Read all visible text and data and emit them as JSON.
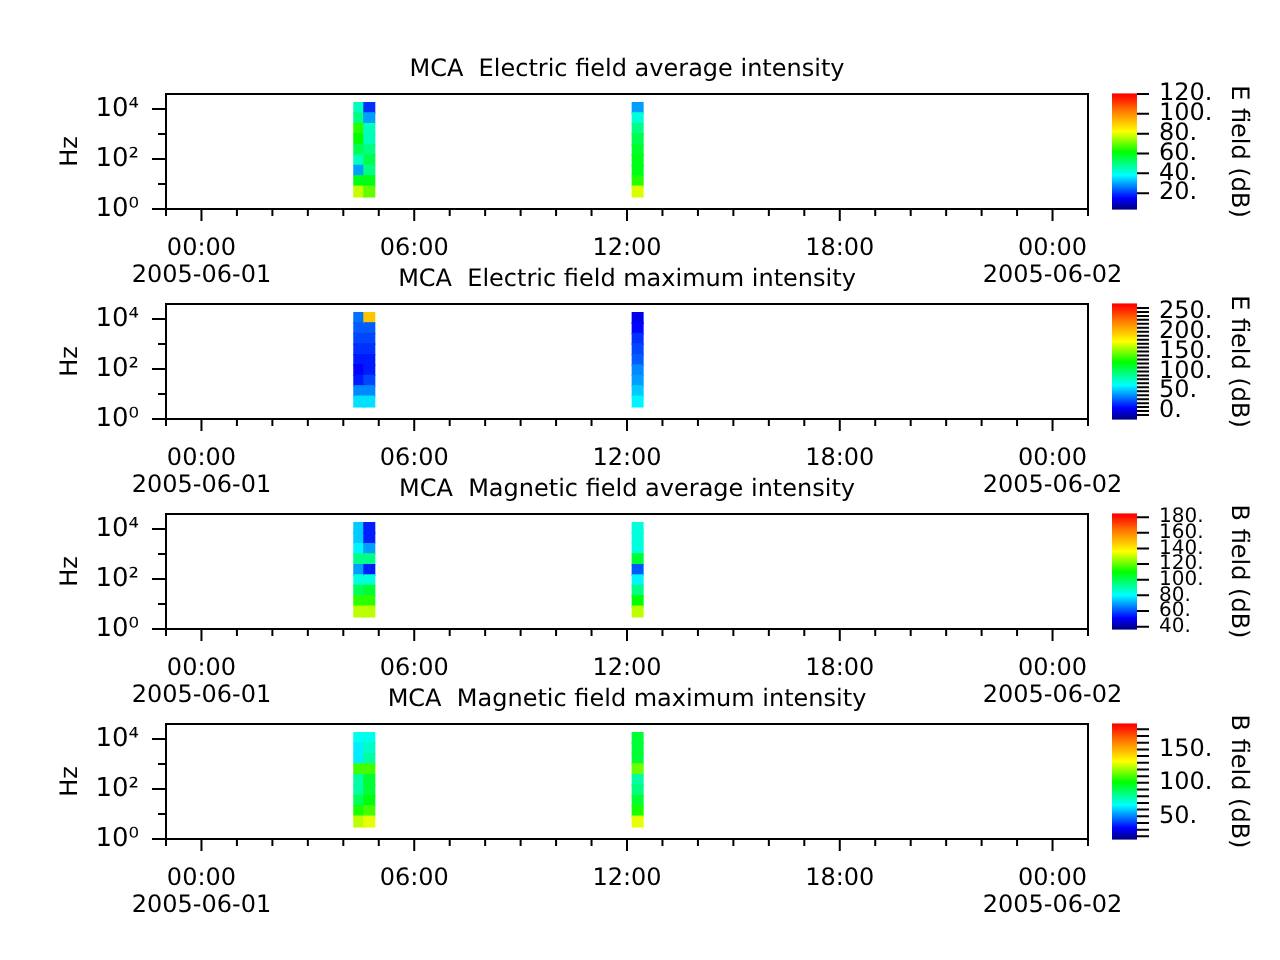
{
  "chart_data": [
    {
      "type": "scatter",
      "title": "MCA  Electric field average intensity",
      "ylabel": "Hz",
      "clabel": "E field (dB)",
      "x": [
        "2005-06-01T04:27",
        "2005-06-01T04:27",
        "2005-06-01T04:27",
        "2005-06-01T04:27",
        "2005-06-01T04:27",
        "2005-06-01T04:27",
        "2005-06-01T04:27",
        "2005-06-01T04:27",
        "2005-06-01T04:27",
        "2005-06-01T04:44",
        "2005-06-01T04:44",
        "2005-06-01T04:44",
        "2005-06-01T04:44",
        "2005-06-01T04:44",
        "2005-06-01T04:44",
        "2005-06-01T04:44",
        "2005-06-01T04:44",
        "2005-06-01T04:44",
        "2005-06-01T12:18",
        "2005-06-01T12:18",
        "2005-06-01T12:18",
        "2005-06-01T12:18",
        "2005-06-01T12:18",
        "2005-06-01T12:18",
        "2005-06-01T12:18",
        "2005-06-01T12:18",
        "2005-06-01T12:18"
      ],
      "values": [
        11000,
        4300,
        1600,
        620,
        230,
        89,
        34,
        13,
        5,
        11000,
        4300,
        1600,
        620,
        230,
        89,
        34,
        13,
        5,
        11000,
        4300,
        1600,
        620,
        230,
        89,
        34,
        13,
        5
      ],
      "cvalues": [
        45,
        50,
        65,
        62,
        55,
        45,
        30,
        60,
        78,
        20,
        30,
        45,
        45,
        50,
        55,
        50,
        60,
        70,
        30,
        42,
        50,
        55,
        58,
        60,
        60,
        65,
        80
      ],
      "marker": "square",
      "log": "y",
      "xlim": [
        "2005-05-31T23:00",
        "2005-06-02T01:00"
      ],
      "xticks": [
        {
          "value": "2005-05-31T23:00",
          "label": null
        },
        {
          "value": "2005-06-01T00:00",
          "label": "00:00\n2005-06-01"
        },
        {
          "value": "2005-06-01T01:00",
          "label": null
        },
        {
          "value": "2005-06-01T02:00",
          "label": null
        },
        {
          "value": "2005-06-01T03:00",
          "label": null
        },
        {
          "value": "2005-06-01T04:00",
          "label": null
        },
        {
          "value": "2005-06-01T05:00",
          "label": null
        },
        {
          "value": "2005-06-01T06:00",
          "label": "06:00"
        },
        {
          "value": "2005-06-01T07:00",
          "label": null
        },
        {
          "value": "2005-06-01T08:00",
          "label": null
        },
        {
          "value": "2005-06-01T09:00",
          "label": null
        },
        {
          "value": "2005-06-01T10:00",
          "label": null
        },
        {
          "value": "2005-06-01T11:00",
          "label": null
        },
        {
          "value": "2005-06-01T12:00",
          "label": "12:00"
        },
        {
          "value": "2005-06-01T13:00",
          "label": null
        },
        {
          "value": "2005-06-01T14:00",
          "label": null
        },
        {
          "value": "2005-06-01T15:00",
          "label": null
        },
        {
          "value": "2005-06-01T16:00",
          "label": null
        },
        {
          "value": "2005-06-01T17:00",
          "label": null
        },
        {
          "value": "2005-06-01T18:00",
          "label": "18:00"
        },
        {
          "value": "2005-06-01T19:00",
          "label": null
        },
        {
          "value": "2005-06-01T20:00",
          "label": null
        },
        {
          "value": "2005-06-01T21:00",
          "label": null
        },
        {
          "value": "2005-06-01T22:00",
          "label": null
        },
        {
          "value": "2005-06-01T23:00",
          "label": null
        },
        {
          "value": "2005-06-02T00:00",
          "label": "00:00\n2005-06-02"
        },
        {
          "value": "2005-06-02T01:00",
          "label": null
        }
      ],
      "ylim": [
        1,
        40000
      ],
      "yticks": [
        {
          "value": 1,
          "label": "10⁰"
        },
        {
          "value": 10,
          "label": null
        },
        {
          "value": 100,
          "label": "10²"
        },
        {
          "value": 1000,
          "label": null
        },
        {
          "value": 10000,
          "label": "10⁴"
        }
      ],
      "clim": [
        4,
        120
      ],
      "cticks": [
        {
          "value": 20,
          "label": "20."
        },
        {
          "value": 40,
          "label": "40."
        },
        {
          "value": 60,
          "label": "60."
        },
        {
          "value": 80,
          "label": "80."
        },
        {
          "value": 100,
          "label": "100."
        },
        {
          "value": 120,
          "label": "120."
        }
      ]
    },
    {
      "type": "scatter",
      "title": "MCA  Electric field maximum intensity",
      "ylabel": "Hz",
      "clabel": "E field (dB)",
      "x": [
        "2005-06-01T04:27",
        "2005-06-01T04:27",
        "2005-06-01T04:27",
        "2005-06-01T04:27",
        "2005-06-01T04:27",
        "2005-06-01T04:27",
        "2005-06-01T04:27",
        "2005-06-01T04:27",
        "2005-06-01T04:27",
        "2005-06-01T04:44",
        "2005-06-01T04:44",
        "2005-06-01T04:44",
        "2005-06-01T04:44",
        "2005-06-01T04:44",
        "2005-06-01T04:44",
        "2005-06-01T04:44",
        "2005-06-01T04:44",
        "2005-06-01T04:44",
        "2005-06-01T12:18",
        "2005-06-01T12:18",
        "2005-06-01T12:18",
        "2005-06-01T12:18",
        "2005-06-01T12:18",
        "2005-06-01T12:18",
        "2005-06-01T12:18",
        "2005-06-01T12:18",
        "2005-06-01T12:18"
      ],
      "values": [
        11000,
        4300,
        1600,
        620,
        230,
        89,
        34,
        13,
        5,
        11000,
        4300,
        1600,
        620,
        230,
        89,
        34,
        13,
        5,
        11000,
        4300,
        1600,
        620,
        230,
        89,
        34,
        13,
        5
      ],
      "cvalues": [
        35,
        30,
        25,
        20,
        15,
        10,
        15,
        40,
        60,
        200,
        30,
        25,
        20,
        15,
        15,
        25,
        40,
        60,
        5,
        10,
        20,
        25,
        30,
        40,
        45,
        55,
        65
      ],
      "marker": "square",
      "log": "y",
      "xlim": [
        "2005-05-31T23:00",
        "2005-06-02T01:00"
      ],
      "xticks": [
        {
          "value": "2005-05-31T23:00",
          "label": null
        },
        {
          "value": "2005-06-01T00:00",
          "label": "00:00\n2005-06-01"
        },
        {
          "value": "2005-06-01T01:00",
          "label": null
        },
        {
          "value": "2005-06-01T02:00",
          "label": null
        },
        {
          "value": "2005-06-01T03:00",
          "label": null
        },
        {
          "value": "2005-06-01T04:00",
          "label": null
        },
        {
          "value": "2005-06-01T05:00",
          "label": null
        },
        {
          "value": "2005-06-01T06:00",
          "label": "06:00"
        },
        {
          "value": "2005-06-01T07:00",
          "label": null
        },
        {
          "value": "2005-06-01T08:00",
          "label": null
        },
        {
          "value": "2005-06-01T09:00",
          "label": null
        },
        {
          "value": "2005-06-01T10:00",
          "label": null
        },
        {
          "value": "2005-06-01T11:00",
          "label": null
        },
        {
          "value": "2005-06-01T12:00",
          "label": "12:00"
        },
        {
          "value": "2005-06-01T13:00",
          "label": null
        },
        {
          "value": "2005-06-01T14:00",
          "label": null
        },
        {
          "value": "2005-06-01T15:00",
          "label": null
        },
        {
          "value": "2005-06-01T16:00",
          "label": null
        },
        {
          "value": "2005-06-01T17:00",
          "label": null
        },
        {
          "value": "2005-06-01T18:00",
          "label": "18:00"
        },
        {
          "value": "2005-06-01T19:00",
          "label": null
        },
        {
          "value": "2005-06-01T20:00",
          "label": null
        },
        {
          "value": "2005-06-01T21:00",
          "label": null
        },
        {
          "value": "2005-06-01T22:00",
          "label": null
        },
        {
          "value": "2005-06-01T23:00",
          "label": null
        },
        {
          "value": "2005-06-02T00:00",
          "label": "00:00\n2005-06-02"
        },
        {
          "value": "2005-06-02T01:00",
          "label": null
        }
      ],
      "ylim": [
        1,
        40000
      ],
      "yticks": [
        {
          "value": 1,
          "label": "10⁰"
        },
        {
          "value": 10,
          "label": null
        },
        {
          "value": 100,
          "label": "10²"
        },
        {
          "value": 1000,
          "label": null
        },
        {
          "value": 10000,
          "label": "10⁴"
        }
      ],
      "clim": [
        -20,
        270
      ],
      "cticks": [
        {
          "value": -10,
          "label": null
        },
        {
          "value": 0,
          "label": "0."
        },
        {
          "value": 10,
          "label": null
        },
        {
          "value": 20,
          "label": null
        },
        {
          "value": 30,
          "label": null
        },
        {
          "value": 40,
          "label": null
        },
        {
          "value": 50,
          "label": "50."
        },
        {
          "value": 60,
          "label": null
        },
        {
          "value": 70,
          "label": null
        },
        {
          "value": 80,
          "label": null
        },
        {
          "value": 90,
          "label": null
        },
        {
          "value": 100,
          "label": "100."
        },
        {
          "value": 110,
          "label": null
        },
        {
          "value": 120,
          "label": null
        },
        {
          "value": 130,
          "label": null
        },
        {
          "value": 140,
          "label": null
        },
        {
          "value": 150,
          "label": "150."
        },
        {
          "value": 160,
          "label": null
        },
        {
          "value": 170,
          "label": null
        },
        {
          "value": 180,
          "label": null
        },
        {
          "value": 190,
          "label": null
        },
        {
          "value": 200,
          "label": "200."
        },
        {
          "value": 210,
          "label": null
        },
        {
          "value": 220,
          "label": null
        },
        {
          "value": 230,
          "label": null
        },
        {
          "value": 240,
          "label": null
        },
        {
          "value": 250,
          "label": "250."
        },
        {
          "value": 260,
          "label": null
        }
      ]
    },
    {
      "type": "scatter",
      "title": "MCA  Magnetic field average intensity",
      "ylabel": "Hz",
      "clabel": "B field (dB)",
      "x": [
        "2005-06-01T04:27",
        "2005-06-01T04:27",
        "2005-06-01T04:27",
        "2005-06-01T04:27",
        "2005-06-01T04:27",
        "2005-06-01T04:27",
        "2005-06-01T04:27",
        "2005-06-01T04:27",
        "2005-06-01T04:27",
        "2005-06-01T04:44",
        "2005-06-01T04:44",
        "2005-06-01T04:44",
        "2005-06-01T04:44",
        "2005-06-01T04:44",
        "2005-06-01T04:44",
        "2005-06-01T04:44",
        "2005-06-01T04:44",
        "2005-06-01T04:44",
        "2005-06-01T12:18",
        "2005-06-01T12:18",
        "2005-06-01T12:18",
        "2005-06-01T12:18",
        "2005-06-01T12:18",
        "2005-06-01T12:18",
        "2005-06-01T12:18",
        "2005-06-01T12:18",
        "2005-06-01T12:18"
      ],
      "values": [
        11000,
        4300,
        1600,
        620,
        230,
        89,
        34,
        13,
        5,
        11000,
        4300,
        1600,
        620,
        230,
        89,
        34,
        13,
        5,
        11000,
        4300,
        1600,
        620,
        230,
        89,
        34,
        13,
        5
      ],
      "cvalues": [
        75,
        75,
        80,
        95,
        70,
        85,
        100,
        115,
        130,
        55,
        55,
        70,
        95,
        55,
        85,
        105,
        115,
        130,
        85,
        85,
        85,
        105,
        62,
        80,
        95,
        110,
        130
      ],
      "marker": "square",
      "log": "y",
      "xlim": [
        "2005-05-31T23:00",
        "2005-06-02T01:00"
      ],
      "xticks": [
        {
          "value": "2005-05-31T23:00",
          "label": null
        },
        {
          "value": "2005-06-01T00:00",
          "label": "00:00\n2005-06-01"
        },
        {
          "value": "2005-06-01T01:00",
          "label": null
        },
        {
          "value": "2005-06-01T02:00",
          "label": null
        },
        {
          "value": "2005-06-01T03:00",
          "label": null
        },
        {
          "value": "2005-06-01T04:00",
          "label": null
        },
        {
          "value": "2005-06-01T05:00",
          "label": null
        },
        {
          "value": "2005-06-01T06:00",
          "label": "06:00"
        },
        {
          "value": "2005-06-01T07:00",
          "label": null
        },
        {
          "value": "2005-06-01T08:00",
          "label": null
        },
        {
          "value": "2005-06-01T09:00",
          "label": null
        },
        {
          "value": "2005-06-01T10:00",
          "label": null
        },
        {
          "value": "2005-06-01T11:00",
          "label": null
        },
        {
          "value": "2005-06-01T12:00",
          "label": "12:00"
        },
        {
          "value": "2005-06-01T13:00",
          "label": null
        },
        {
          "value": "2005-06-01T14:00",
          "label": null
        },
        {
          "value": "2005-06-01T15:00",
          "label": null
        },
        {
          "value": "2005-06-01T16:00",
          "label": null
        },
        {
          "value": "2005-06-01T17:00",
          "label": null
        },
        {
          "value": "2005-06-01T18:00",
          "label": "18:00"
        },
        {
          "value": "2005-06-01T19:00",
          "label": null
        },
        {
          "value": "2005-06-01T20:00",
          "label": null
        },
        {
          "value": "2005-06-01T21:00",
          "label": null
        },
        {
          "value": "2005-06-01T22:00",
          "label": null
        },
        {
          "value": "2005-06-01T23:00",
          "label": null
        },
        {
          "value": "2005-06-02T00:00",
          "label": "00:00\n2005-06-02"
        },
        {
          "value": "2005-06-02T01:00",
          "label": null
        }
      ],
      "ylim": [
        1,
        40000
      ],
      "yticks": [
        {
          "value": 1,
          "label": "10⁰"
        },
        {
          "value": 10,
          "label": null
        },
        {
          "value": 100,
          "label": "10²"
        },
        {
          "value": 1000,
          "label": null
        },
        {
          "value": 10000,
          "label": "10⁴"
        }
      ],
      "clim": [
        37,
        184
      ],
      "cticks": [
        {
          "value": 40,
          "label": "40."
        },
        {
          "value": 60,
          "label": "60."
        },
        {
          "value": 80,
          "label": "80."
        },
        {
          "value": 100,
          "label": "100."
        },
        {
          "value": 120,
          "label": "120."
        },
        {
          "value": 140,
          "label": "140."
        },
        {
          "value": 160,
          "label": "160."
        },
        {
          "value": 180,
          "label": "180."
        }
      ]
    },
    {
      "type": "scatter",
      "title": "MCA  Magnetic field maximum intensity",
      "ylabel": "Hz",
      "clabel": "B field (dB)",
      "x": [
        "2005-06-01T04:27",
        "2005-06-01T04:27",
        "2005-06-01T04:27",
        "2005-06-01T04:27",
        "2005-06-01T04:27",
        "2005-06-01T04:27",
        "2005-06-01T04:27",
        "2005-06-01T04:27",
        "2005-06-01T04:27",
        "2005-06-01T04:44",
        "2005-06-01T04:44",
        "2005-06-01T04:44",
        "2005-06-01T04:44",
        "2005-06-01T04:44",
        "2005-06-01T04:44",
        "2005-06-01T04:44",
        "2005-06-01T04:44",
        "2005-06-01T04:44",
        "2005-06-01T12:18",
        "2005-06-01T12:18",
        "2005-06-01T12:18",
        "2005-06-01T12:18",
        "2005-06-01T12:18",
        "2005-06-01T12:18",
        "2005-06-01T12:18",
        "2005-06-01T12:18",
        "2005-06-01T12:18"
      ],
      "values": [
        11000,
        4300,
        1600,
        620,
        230,
        89,
        34,
        13,
        5,
        11000,
        4300,
        1600,
        620,
        230,
        89,
        34,
        13,
        5,
        11000,
        4300,
        1600,
        620,
        230,
        89,
        34,
        13,
        5
      ],
      "cvalues": [
        70,
        65,
        65,
        110,
        80,
        80,
        90,
        105,
        125,
        70,
        75,
        80,
        110,
        95,
        95,
        100,
        110,
        130,
        95,
        95,
        95,
        115,
        80,
        85,
        95,
        105,
        130
      ],
      "marker": "square",
      "log": "y",
      "xlim": [
        "2005-05-31T23:00",
        "2005-06-02T01:00"
      ],
      "xticks": [
        {
          "value": "2005-05-31T23:00",
          "label": null
        },
        {
          "value": "2005-06-01T00:00",
          "label": "00:00\n2005-06-01"
        },
        {
          "value": "2005-06-01T01:00",
          "label": null
        },
        {
          "value": "2005-06-01T02:00",
          "label": null
        },
        {
          "value": "2005-06-01T03:00",
          "label": null
        },
        {
          "value": "2005-06-01T04:00",
          "label": null
        },
        {
          "value": "2005-06-01T05:00",
          "label": null
        },
        {
          "value": "2005-06-01T06:00",
          "label": "06:00"
        },
        {
          "value": "2005-06-01T07:00",
          "label": null
        },
        {
          "value": "2005-06-01T08:00",
          "label": null
        },
        {
          "value": "2005-06-01T09:00",
          "label": null
        },
        {
          "value": "2005-06-01T10:00",
          "label": null
        },
        {
          "value": "2005-06-01T11:00",
          "label": null
        },
        {
          "value": "2005-06-01T12:00",
          "label": "12:00"
        },
        {
          "value": "2005-06-01T13:00",
          "label": null
        },
        {
          "value": "2005-06-01T14:00",
          "label": null
        },
        {
          "value": "2005-06-01T15:00",
          "label": null
        },
        {
          "value": "2005-06-01T16:00",
          "label": null
        },
        {
          "value": "2005-06-01T17:00",
          "label": null
        },
        {
          "value": "2005-06-01T18:00",
          "label": "18:00"
        },
        {
          "value": "2005-06-01T19:00",
          "label": null
        },
        {
          "value": "2005-06-01T20:00",
          "label": null
        },
        {
          "value": "2005-06-01T21:00",
          "label": null
        },
        {
          "value": "2005-06-01T22:00",
          "label": null
        },
        {
          "value": "2005-06-01T23:00",
          "label": null
        },
        {
          "value": "2005-06-02T00:00",
          "label": "00:00\n2005-06-02"
        },
        {
          "value": "2005-06-02T01:00",
          "label": null
        }
      ],
      "ylim": [
        1,
        40000
      ],
      "yticks": [
        {
          "value": 1,
          "label": "10⁰"
        },
        {
          "value": 10,
          "label": null
        },
        {
          "value": 100,
          "label": "10²"
        },
        {
          "value": 1000,
          "label": null
        },
        {
          "value": 10000,
          "label": "10⁴"
        }
      ],
      "clim": [
        16,
        188
      ],
      "cticks": [
        {
          "value": 20,
          "label": null
        },
        {
          "value": 30,
          "label": null
        },
        {
          "value": 40,
          "label": null
        },
        {
          "value": 50,
          "label": "50."
        },
        {
          "value": 60,
          "label": null
        },
        {
          "value": 70,
          "label": null
        },
        {
          "value": 80,
          "label": null
        },
        {
          "value": 90,
          "label": null
        },
        {
          "value": 100,
          "label": "100."
        },
        {
          "value": 110,
          "label": null
        },
        {
          "value": 120,
          "label": null
        },
        {
          "value": 130,
          "label": null
        },
        {
          "value": 140,
          "label": null
        },
        {
          "value": 150,
          "label": "150."
        },
        {
          "value": 160,
          "label": null
        },
        {
          "value": 170,
          "label": null
        },
        {
          "value": 180,
          "label": null
        }
      ]
    }
  ]
}
